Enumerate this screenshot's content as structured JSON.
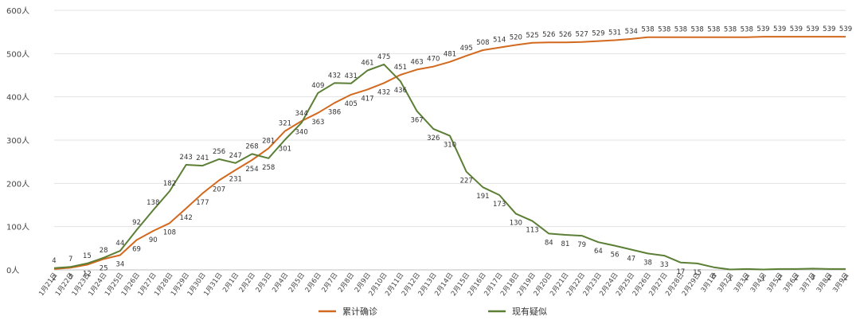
{
  "chart_data": {
    "type": "line",
    "title": "",
    "xlabel": "",
    "ylabel": "",
    "ylim": [
      0,
      600
    ],
    "yticks": [
      0,
      100,
      200,
      300,
      400,
      500,
      600
    ],
    "ytick_labels": [
      "0人",
      "100人",
      "200人",
      "300人",
      "400人",
      "500人",
      "600人"
    ],
    "grid": "horizontal",
    "legend_position": "bottom",
    "categories": [
      "1月21日",
      "1月22日",
      "1月23日",
      "1月24日",
      "1月25日",
      "1月26日",
      "1月27日",
      "1月28日",
      "1月29日",
      "1月30日",
      "1月31日",
      "2月1日",
      "2月2日",
      "2月3日",
      "2月4日",
      "2月5日",
      "2月6日",
      "2月7日",
      "2月8日",
      "2月9日",
      "2月10日",
      "2月11日",
      "2月12日",
      "2月13日",
      "2月14日",
      "2月15日",
      "2月16日",
      "2月17日",
      "2月18日",
      "2月19日",
      "2月20日",
      "2月21日",
      "2月22日",
      "2月23日",
      "2月24日",
      "2月25日",
      "2月26日",
      "2月27日",
      "2月28日",
      "2月29日",
      "3月1日",
      "3月2日",
      "3月3日",
      "3月4日",
      "3月5日",
      "3月6日",
      "3月7日",
      "3月8日",
      "3月9日"
    ],
    "series": [
      {
        "name": "累计确诊",
        "color": "#d2691e",
        "values": [
          2,
          5,
          12,
          25,
          34,
          69,
          90,
          108,
          142,
          177,
          207,
          231,
          254,
          281,
          321,
          344,
          363,
          386,
          405,
          417,
          432,
          451,
          463,
          470,
          481,
          495,
          508,
          514,
          520,
          525,
          526,
          526,
          527,
          529,
          531,
          534,
          538,
          538,
          538,
          538,
          538,
          538,
          538,
          539,
          539,
          539,
          539,
          539,
          539
        ]
      },
      {
        "name": "现有疑似",
        "color": "#5b7f35",
        "values": [
          4,
          7,
          15,
          28,
          44,
          92,
          138,
          182,
          243,
          241,
          256,
          247,
          268,
          258,
          301,
          340,
          409,
          432,
          431,
          461,
          475,
          436,
          367,
          326,
          310,
          227,
          191,
          173,
          130,
          113,
          84,
          81,
          79,
          64,
          56,
          47,
          38,
          33,
          17,
          15,
          6,
          1,
          2,
          1,
          2,
          2,
          3,
          2,
          2
        ]
      }
    ]
  }
}
